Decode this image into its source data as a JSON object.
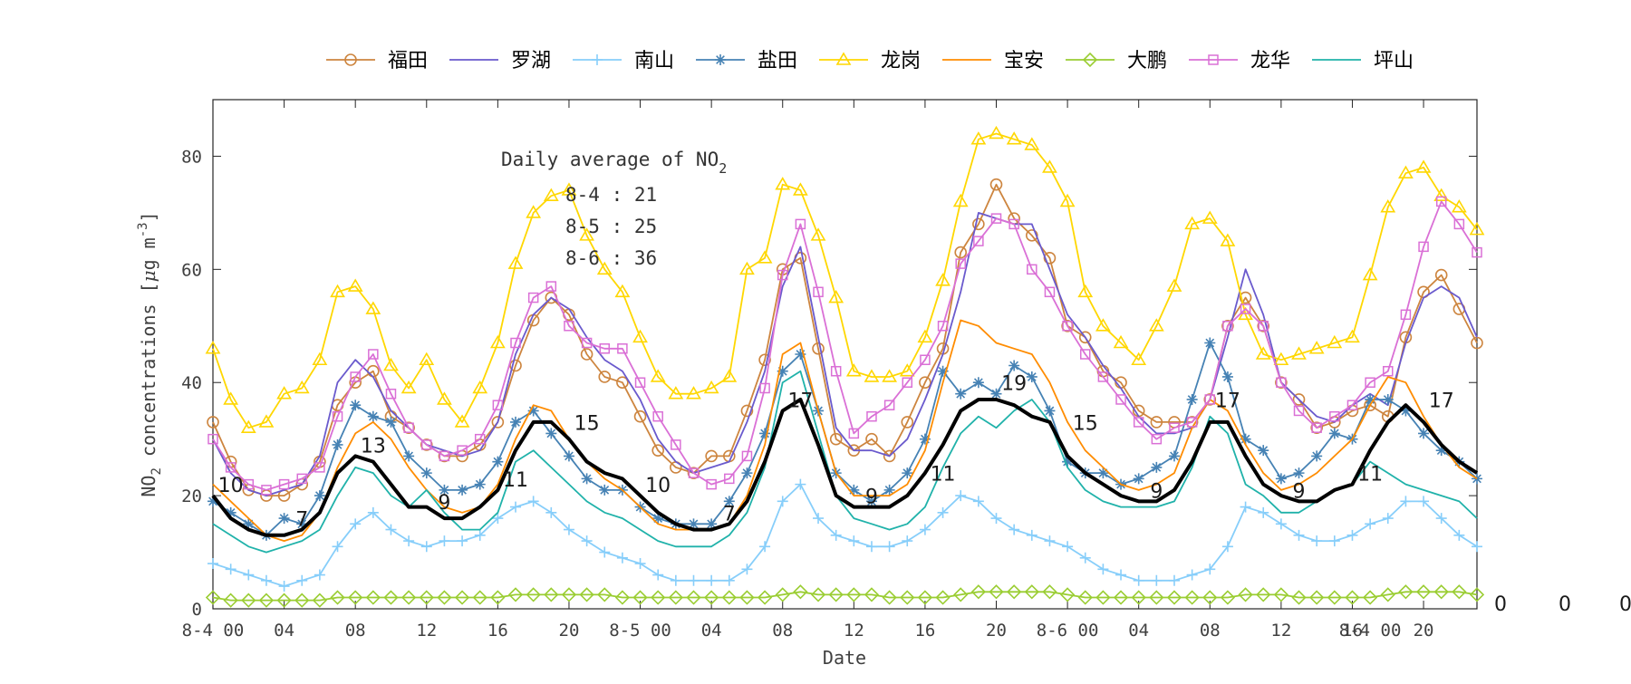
{
  "chart_data": {
    "type": "line",
    "title": "",
    "xlabel": "Date",
    "ylabel": "NO2 concentrations [μg m-3]",
    "ylabel_parts": {
      "prefix": "NO",
      "sub": "2",
      "mid": " concentrations [",
      "mu": "μ",
      "unit": "g m",
      "sup": "-3",
      "suffix": "]"
    },
    "xlim": [
      0,
      71
    ],
    "ylim": [
      0,
      90
    ],
    "yticks": [
      0,
      20,
      40,
      60,
      80
    ],
    "xtick_positions": [
      0,
      4,
      8,
      12,
      16,
      20,
      24,
      28,
      32,
      36,
      40,
      44,
      48,
      52,
      56,
      60,
      64,
      68
    ],
    "xtick_labels": [
      "8-4 00",
      "04",
      "08",
      "12",
      "16",
      "20",
      "8-5 00",
      "04",
      "08",
      "12",
      "16",
      "20",
      "8-6 00",
      "04",
      "08",
      "12",
      "16",
      "20"
    ],
    "extra_xtick_labels": [
      {
        "x": 65,
        "label": "8-4 00"
      }
    ],
    "right_edge_labels": [
      "0",
      "0",
      "0"
    ],
    "legend_position": "top-outside",
    "grid": false,
    "annotation": {
      "line1_prefix": "Daily average of NO",
      "line1_sub": "2",
      "lines": [
        "8-4 : 21",
        "8-5 : 25",
        "8-6 : 36"
      ]
    },
    "series": [
      {
        "name": "福田",
        "color": "#cd853f",
        "marker": "circle",
        "values": [
          33,
          26,
          21,
          20,
          20,
          22,
          26,
          36,
          40,
          42,
          34,
          32,
          29,
          27,
          27,
          29,
          33,
          43,
          51,
          55,
          52,
          45,
          41,
          40,
          34,
          28,
          25,
          24,
          27,
          27,
          35,
          44,
          60,
          62,
          46,
          30,
          28,
          30,
          27,
          33,
          40,
          46,
          63,
          68,
          75,
          69,
          66,
          62,
          50,
          48,
          42,
          40,
          35,
          33,
          33,
          33,
          37,
          50,
          55,
          50,
          40,
          37,
          32,
          33,
          35,
          36,
          34,
          48,
          56,
          59,
          53,
          47
        ]
      },
      {
        "name": "罗湖",
        "color": "#6a5acd",
        "marker": "none",
        "values": [
          30,
          24,
          21,
          20,
          21,
          22,
          27,
          40,
          44,
          41,
          35,
          32,
          29,
          28,
          27,
          28,
          33,
          45,
          52,
          55,
          53,
          48,
          44,
          42,
          37,
          30,
          26,
          24,
          25,
          26,
          33,
          42,
          57,
          64,
          48,
          32,
          28,
          28,
          27,
          30,
          37,
          45,
          56,
          70,
          69,
          68,
          68,
          60,
          52,
          48,
          43,
          39,
          34,
          31,
          31,
          32,
          37,
          48,
          60,
          52,
          40,
          37,
          34,
          33,
          36,
          38,
          36,
          47,
          55,
          57,
          55,
          48
        ]
      },
      {
        "name": "南山",
        "color": "#87cefa",
        "marker": "plus",
        "values": [
          8,
          7,
          6,
          5,
          4,
          5,
          6,
          11,
          15,
          17,
          14,
          12,
          11,
          12,
          12,
          13,
          16,
          18,
          19,
          17,
          14,
          12,
          10,
          9,
          8,
          6,
          5,
          5,
          5,
          5,
          7,
          11,
          19,
          22,
          16,
          13,
          12,
          11,
          11,
          12,
          14,
          17,
          20,
          19,
          16,
          14,
          13,
          12,
          11,
          9,
          7,
          6,
          5,
          5,
          5,
          6,
          7,
          11,
          18,
          17,
          15,
          13,
          12,
          12,
          13,
          15,
          16,
          19,
          19,
          16,
          13,
          11
        ]
      },
      {
        "name": "盐田",
        "color": "#4682b4",
        "marker": "star",
        "values": [
          19,
          17,
          15,
          13,
          16,
          15,
          20,
          29,
          36,
          34,
          33,
          27,
          24,
          21,
          21,
          22,
          26,
          33,
          35,
          31,
          27,
          23,
          21,
          21,
          18,
          16,
          15,
          15,
          15,
          19,
          24,
          31,
          42,
          45,
          35,
          24,
          21,
          19,
          21,
          24,
          30,
          42,
          38,
          40,
          38,
          43,
          41,
          35,
          26,
          24,
          24,
          22,
          23,
          25,
          27,
          37,
          47,
          41,
          30,
          28,
          23,
          24,
          27,
          31,
          30,
          37,
          37,
          35,
          31,
          28,
          26,
          23
        ]
      },
      {
        "name": "龙岗",
        "color": "#ffd700",
        "marker": "triangle",
        "values": [
          46,
          37,
          32,
          33,
          38,
          39,
          44,
          56,
          57,
          53,
          43,
          39,
          44,
          37,
          33,
          39,
          47,
          61,
          70,
          73,
          74,
          66,
          60,
          56,
          48,
          41,
          38,
          38,
          39,
          41,
          60,
          62,
          75,
          74,
          66,
          55,
          42,
          41,
          41,
          42,
          48,
          58,
          72,
          83,
          84,
          83,
          82,
          78,
          72,
          56,
          50,
          47,
          44,
          50,
          57,
          68,
          69,
          65,
          52,
          45,
          44,
          45,
          46,
          47,
          48,
          59,
          71,
          77,
          78,
          73,
          71,
          67
        ]
      },
      {
        "name": "宝安",
        "color": "#ff8c00",
        "marker": "none",
        "values": [
          22,
          19,
          16,
          13,
          12,
          13,
          17,
          25,
          31,
          33,
          30,
          25,
          21,
          18,
          17,
          18,
          22,
          30,
          36,
          35,
          30,
          26,
          23,
          21,
          18,
          15,
          14,
          14,
          14,
          15,
          20,
          29,
          45,
          47,
          35,
          24,
          20,
          20,
          20,
          22,
          28,
          40,
          51,
          50,
          47,
          46,
          45,
          40,
          33,
          28,
          25,
          22,
          21,
          22,
          24,
          32,
          37,
          35,
          29,
          24,
          21,
          22,
          24,
          27,
          30,
          36,
          41,
          40,
          34,
          29,
          25,
          23
        ]
      },
      {
        "name": "大鹏",
        "color": "#9acd32",
        "marker": "diamond",
        "values": [
          2,
          1.5,
          1.5,
          1.5,
          1.5,
          1.5,
          1.5,
          2,
          2,
          2,
          2,
          2,
          2,
          2,
          2,
          2,
          2,
          2.5,
          2.5,
          2.5,
          2.5,
          2.5,
          2.5,
          2,
          2,
          2,
          2,
          2,
          2,
          2,
          2,
          2,
          2.5,
          3,
          2.5,
          2.5,
          2.5,
          2.5,
          2,
          2,
          2,
          2,
          2.5,
          3,
          3,
          3,
          3,
          3,
          2.5,
          2,
          2,
          2,
          2,
          2,
          2,
          2,
          2,
          2,
          2.5,
          2.5,
          2.5,
          2,
          2,
          2,
          2,
          2,
          2.5,
          3,
          3,
          3,
          3,
          2.5
        ]
      },
      {
        "name": "龙华",
        "color": "#da70d6",
        "marker": "square",
        "values": [
          30,
          25,
          22,
          21,
          22,
          23,
          25,
          34,
          41,
          45,
          38,
          32,
          29,
          27,
          28,
          30,
          36,
          47,
          55,
          57,
          50,
          47,
          46,
          46,
          40,
          34,
          29,
          24,
          22,
          23,
          27,
          39,
          59,
          68,
          56,
          42,
          31,
          34,
          36,
          40,
          44,
          50,
          61,
          65,
          69,
          68,
          60,
          56,
          50,
          45,
          41,
          37,
          33,
          30,
          32,
          33,
          37,
          50,
          53,
          50,
          40,
          35,
          32,
          34,
          36,
          40,
          42,
          52,
          64,
          72,
          68,
          63
        ]
      },
      {
        "name": "坪山",
        "color": "#20b2aa",
        "marker": "none",
        "values": [
          15,
          13,
          11,
          10,
          11,
          12,
          14,
          20,
          25,
          24,
          20,
          18,
          21,
          17,
          14,
          14,
          17,
          26,
          28,
          25,
          22,
          19,
          17,
          16,
          14,
          12,
          11,
          11,
          11,
          13,
          17,
          25,
          40,
          42,
          31,
          20,
          16,
          15,
          14,
          15,
          18,
          25,
          31,
          34,
          32,
          35,
          37,
          33,
          25,
          21,
          19,
          18,
          18,
          18,
          19,
          25,
          34,
          31,
          22,
          20,
          17,
          17,
          19,
          21,
          22,
          26,
          24,
          22,
          21,
          20,
          19,
          16
        ]
      },
      {
        "name": "",
        "color": "#000000",
        "marker": "none",
        "is_mean": true,
        "values": [
          20,
          16,
          14,
          13,
          13,
          14,
          17,
          24,
          27,
          26,
          22,
          18,
          18,
          16,
          16,
          18,
          21,
          28,
          33,
          33,
          30,
          26,
          24,
          23,
          20,
          17,
          15,
          14,
          14,
          15,
          19,
          26,
          35,
          37,
          29,
          20,
          18,
          18,
          18,
          20,
          24,
          29,
          35,
          37,
          37,
          36,
          34,
          33,
          27,
          24,
          22,
          20,
          19,
          19,
          21,
          26,
          33,
          33,
          27,
          22,
          20,
          19,
          19,
          21,
          22,
          28,
          33,
          36,
          33,
          29,
          26,
          24
        ]
      }
    ],
    "mean_labels": [
      {
        "x": 1,
        "y": 20,
        "label": "10"
      },
      {
        "x": 5,
        "y": 14,
        "label": "7"
      },
      {
        "x": 9,
        "y": 27,
        "label": "13"
      },
      {
        "x": 13,
        "y": 17,
        "label": "9"
      },
      {
        "x": 17,
        "y": 21,
        "label": "11"
      },
      {
        "x": 21,
        "y": 31,
        "label": "15"
      },
      {
        "x": 25,
        "y": 20,
        "label": "10"
      },
      {
        "x": 29,
        "y": 15,
        "label": "7"
      },
      {
        "x": 33,
        "y": 35,
        "label": "17"
      },
      {
        "x": 37,
        "y": 18,
        "label": "9"
      },
      {
        "x": 41,
        "y": 22,
        "label": "11"
      },
      {
        "x": 45,
        "y": 38,
        "label": "19"
      },
      {
        "x": 49,
        "y": 31,
        "label": "15"
      },
      {
        "x": 53,
        "y": 19,
        "label": "9"
      },
      {
        "x": 57,
        "y": 35,
        "label": "17"
      },
      {
        "x": 61,
        "y": 19,
        "label": "9"
      },
      {
        "x": 65,
        "y": 22,
        "label": "11"
      },
      {
        "x": 69,
        "y": 35,
        "label": "17"
      }
    ]
  }
}
